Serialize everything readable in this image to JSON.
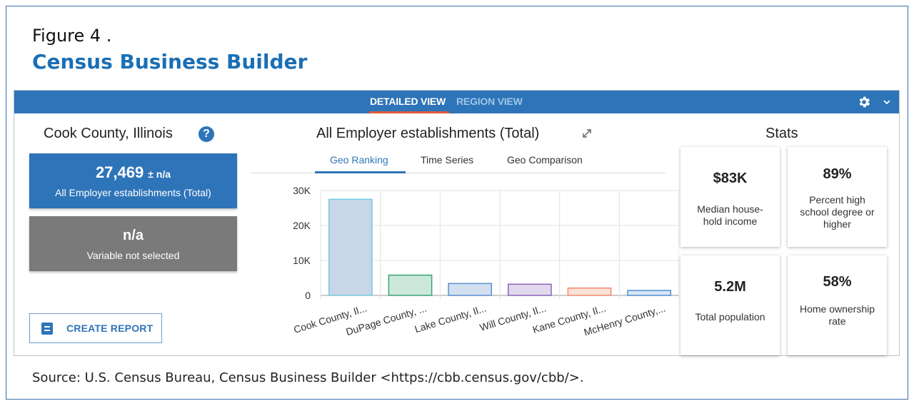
{
  "figure": {
    "label": "Figure 4 .",
    "title": "Census Business Builder",
    "source": "Source: U.S. Census Bureau, Census Business Builder <https://cbb.census.gov/cbb/>."
  },
  "topbar": {
    "tabs": [
      {
        "label": "DETAILED VIEW",
        "active": true
      },
      {
        "label": "REGION VIEW",
        "active": false
      }
    ],
    "settings_icon": "gear-icon",
    "menu_icon": "chevron-down-icon"
  },
  "left_panel": {
    "title": "Cook County, Illinois",
    "help_icon": "?",
    "primary_card": {
      "value": "27,469",
      "margin": "± n/a",
      "label": "All Employer establishments (Total)"
    },
    "secondary_card": {
      "value": "n/a",
      "label": "Variable not selected"
    },
    "create_report_label": "CREATE REPORT"
  },
  "chart_panel": {
    "title": "All Employer establishments (Total)",
    "subtabs": [
      "Geo Ranking",
      "Time Series",
      "Geo Comparison"
    ],
    "active_subtab": "Geo Ranking"
  },
  "chart_data": {
    "type": "bar",
    "categories": [
      "Cook County, Il...",
      "DuPage County, ...",
      "Lake County, Il...",
      "Will County, Il...",
      "Kane County, Il...",
      "McHenry County,..."
    ],
    "values": [
      27469,
      5800,
      3400,
      3200,
      2100,
      1400
    ],
    "ylim": [
      0,
      30000
    ],
    "yticks": [
      0,
      10000,
      20000,
      30000
    ],
    "ytick_labels": [
      "0",
      "10K",
      "20K",
      "30K"
    ],
    "colors": [
      {
        "fill": "#c9d6e8",
        "stroke": "#6fcbe0"
      },
      {
        "fill": "#cce8dc",
        "stroke": "#3aa574"
      },
      {
        "fill": "#d3e0f0",
        "stroke": "#5b8fcf"
      },
      {
        "fill": "#e3d9ee",
        "stroke": "#8a63b8"
      },
      {
        "fill": "#fbe1d8",
        "stroke": "#f08a6a"
      },
      {
        "fill": "#d7e6f5",
        "stroke": "#4a8ed0"
      }
    ],
    "grid": true
  },
  "stats": {
    "title": "Stats",
    "cards": [
      {
        "value": "$83K",
        "label": "Median house-hold income"
      },
      {
        "value": "89%",
        "label": "Percent high school degree or higher"
      },
      {
        "value": "5.2M",
        "label": "Total population"
      },
      {
        "value": "58%",
        "label": "Home ownership rate"
      }
    ]
  }
}
